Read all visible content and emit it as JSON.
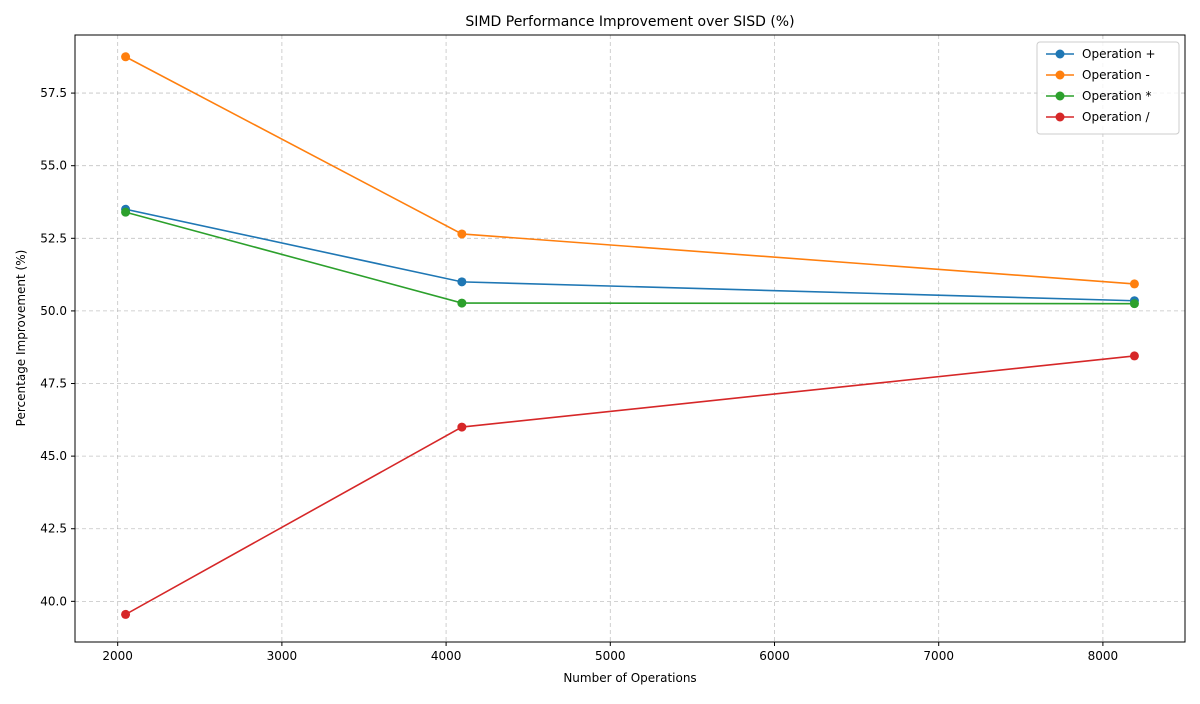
{
  "chart_data": {
    "type": "line",
    "title": "SIMD Performance Improvement over SISD (%)",
    "xlabel": "Number of Operations",
    "ylabel": "Percentage Improvement (%)",
    "x": [
      2048,
      4096,
      8192
    ],
    "xlim": [
      1740,
      8500
    ],
    "ylim": [
      38.6,
      59.5
    ],
    "xticks": [
      2000,
      3000,
      4000,
      5000,
      6000,
      7000,
      8000
    ],
    "yticks": [
      40.0,
      42.5,
      45.0,
      47.5,
      50.0,
      52.5,
      55.0,
      57.5
    ],
    "xtick_labels": [
      "2000",
      "3000",
      "4000",
      "5000",
      "6000",
      "7000",
      "8000"
    ],
    "ytick_labels": [
      "40.0",
      "42.5",
      "45.0",
      "47.5",
      "50.0",
      "52.5",
      "55.0",
      "57.5"
    ],
    "grid": true,
    "legend_position": "top-right",
    "series": [
      {
        "name": "Operation +",
        "color": "#1f77b4",
        "values": [
          53.5,
          51.0,
          50.35
        ]
      },
      {
        "name": "Operation -",
        "color": "#ff7f0e",
        "values": [
          58.75,
          52.65,
          50.93
        ]
      },
      {
        "name": "Operation *",
        "color": "#2ca02c",
        "values": [
          53.4,
          50.27,
          50.25
        ]
      },
      {
        "name": "Operation /",
        "color": "#d62728",
        "values": [
          39.55,
          46.0,
          48.45
        ]
      }
    ]
  }
}
